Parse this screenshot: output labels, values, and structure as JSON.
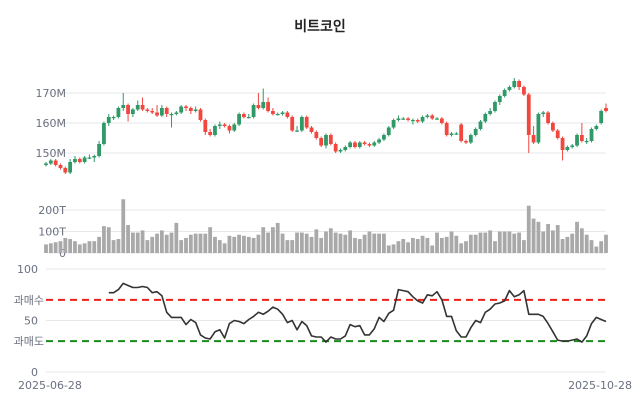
{
  "chart_data": [
    {
      "type": "candlestick",
      "title": "비트코인",
      "start_date": "2025-06-28",
      "end_date": "2025-10-28",
      "x_tick_labels": [
        "2025-06-28",
        "2025-10-28"
      ],
      "y_ticks": [
        150,
        160,
        170
      ],
      "y_tick_labels": [
        "150M",
        "160M",
        "170M"
      ],
      "unit": "M",
      "grid": true,
      "up_color": "#2f9a68",
      "down_color": "#f2473f",
      "ohlc": [
        [
          146,
          147,
          145.5,
          146.5
        ],
        [
          146.5,
          148,
          146,
          147.5
        ],
        [
          147.5,
          148,
          145.5,
          146
        ],
        [
          146,
          146.5,
          144.5,
          145
        ],
        [
          145,
          145.5,
          143,
          143.5
        ],
        [
          143.5,
          148,
          143,
          147
        ],
        [
          147,
          149,
          146.5,
          148
        ],
        [
          148,
          148.5,
          146.5,
          147
        ],
        [
          147,
          149,
          146.5,
          148.5
        ],
        [
          148.5,
          149.5,
          148,
          148.5
        ],
        [
          148.5,
          149.5,
          147,
          149
        ],
        [
          149,
          154,
          148.5,
          153
        ],
        [
          153,
          160.5,
          152.5,
          160
        ],
        [
          160,
          163,
          159,
          162
        ],
        [
          162,
          162.5,
          161,
          162
        ],
        [
          162,
          165.5,
          161.5,
          165
        ],
        [
          165,
          170,
          164,
          166
        ],
        [
          166,
          166.5,
          160.5,
          163
        ],
        [
          163,
          165,
          162,
          164.5
        ],
        [
          164.5,
          167.5,
          164,
          166
        ],
        [
          166,
          168.5,
          164,
          164.5
        ],
        [
          164.5,
          165,
          163.5,
          164
        ],
        [
          164,
          165,
          163,
          163.5
        ],
        [
          163.5,
          166,
          162,
          162.5
        ],
        [
          162.5,
          166,
          162,
          165
        ],
        [
          165,
          165.5,
          162,
          163
        ],
        [
          163,
          163.5,
          158.5,
          163
        ],
        [
          163,
          164,
          162.5,
          163.5
        ],
        [
          163.5,
          166,
          163,
          165.5
        ],
        [
          165.5,
          166,
          164,
          165
        ],
        [
          165,
          165.5,
          163,
          164
        ],
        [
          164,
          165.5,
          163.5,
          164.5
        ],
        [
          164.5,
          165,
          160.5,
          161
        ],
        [
          161,
          161.5,
          156,
          157
        ],
        [
          157,
          158,
          155.5,
          156
        ],
        [
          156,
          159.5,
          155.5,
          159
        ],
        [
          159,
          160.5,
          158,
          159.5
        ],
        [
          159.5,
          160,
          158.5,
          159
        ],
        [
          159,
          159.5,
          156.5,
          157.5
        ],
        [
          157.5,
          160,
          157,
          159.5
        ],
        [
          159.5,
          163.5,
          159,
          163
        ],
        [
          163,
          163.5,
          161.5,
          162
        ],
        [
          162,
          163,
          161.5,
          162
        ],
        [
          162,
          166.5,
          161.5,
          166
        ],
        [
          166,
          170,
          164.5,
          165
        ],
        [
          165,
          171.5,
          164.5,
          167
        ],
        [
          167,
          168.5,
          163.5,
          164
        ],
        [
          164,
          165,
          162.5,
          163
        ],
        [
          163,
          163.5,
          162.5,
          163
        ],
        [
          163,
          164,
          162.5,
          163.5
        ],
        [
          163.5,
          164,
          161.5,
          162
        ],
        [
          162,
          162.5,
          157,
          157.5
        ],
        [
          157.5,
          159,
          157,
          157.5
        ],
        [
          157.5,
          162.5,
          157,
          162
        ],
        [
          162,
          162.5,
          158,
          158.5
        ],
        [
          158.5,
          159,
          156.5,
          157
        ],
        [
          157,
          157.5,
          154.5,
          155
        ],
        [
          155,
          155.5,
          152,
          152.5
        ],
        [
          152.5,
          156.5,
          151.5,
          156
        ],
        [
          156,
          156.5,
          152.5,
          153
        ],
        [
          153,
          153.5,
          150,
          150.5
        ],
        [
          150.5,
          151.5,
          150,
          151
        ],
        [
          151,
          152.5,
          150.5,
          152
        ],
        [
          152,
          154,
          151.5,
          153.5
        ],
        [
          153.5,
          154,
          151.5,
          152
        ],
        [
          152,
          154,
          151.5,
          153.5
        ],
        [
          153.5,
          154,
          152.5,
          153
        ],
        [
          153,
          153.5,
          152,
          152.5
        ],
        [
          152.5,
          154,
          152,
          153.5
        ],
        [
          153.5,
          155,
          153,
          154.5
        ],
        [
          154.5,
          156.5,
          154,
          156
        ],
        [
          156,
          159,
          155.5,
          158.5
        ],
        [
          158.5,
          161.5,
          158,
          161
        ],
        [
          161,
          162.5,
          160.5,
          161.5
        ],
        [
          161.5,
          162,
          161,
          161.5
        ],
        [
          161.5,
          162,
          160.5,
          161
        ],
        [
          161,
          161.5,
          159.5,
          161
        ],
        [
          161,
          161.5,
          160,
          160.5
        ],
        [
          160.5,
          162.5,
          160,
          162
        ],
        [
          162,
          163,
          161.5,
          162.5
        ],
        [
          162.5,
          163,
          161,
          161.5
        ],
        [
          161.5,
          162,
          161,
          161.5
        ],
        [
          161.5,
          162,
          159.5,
          160
        ],
        [
          160,
          160.5,
          155.5,
          156
        ],
        [
          156,
          157,
          155.5,
          156.5
        ],
        [
          156.5,
          157,
          156,
          156.5
        ],
        [
          159.5,
          160,
          153.5,
          154
        ],
        [
          154,
          154.5,
          153,
          153.5
        ],
        [
          153.5,
          156.5,
          153,
          156
        ],
        [
          156,
          158.5,
          155.5,
          158
        ],
        [
          158,
          161,
          157.5,
          160.5
        ],
        [
          160.5,
          163.5,
          160,
          163
        ],
        [
          163,
          165,
          162.5,
          164
        ],
        [
          164,
          167.5,
          163.5,
          167
        ],
        [
          167,
          169.5,
          166,
          169
        ],
        [
          169,
          171.5,
          168.5,
          171
        ],
        [
          171,
          172.5,
          170.5,
          172
        ],
        [
          172,
          175,
          171.5,
          174
        ],
        [
          174,
          174.5,
          171,
          172
        ],
        [
          172,
          172.5,
          169,
          169.5
        ],
        [
          169.5,
          170,
          150,
          156
        ],
        [
          156,
          159,
          153,
          153.5
        ],
        [
          153.5,
          163.5,
          153,
          163
        ],
        [
          163,
          164,
          162,
          163.5
        ],
        [
          163.5,
          164,
          159.5,
          160
        ],
        [
          160,
          160.5,
          157,
          157.5
        ],
        [
          157.5,
          158,
          154.5,
          155
        ],
        [
          155,
          155.5,
          147.5,
          151
        ],
        [
          151,
          152.5,
          150.5,
          152
        ],
        [
          152,
          153,
          151.5,
          152.5
        ],
        [
          152.5,
          156.5,
          152,
          156
        ],
        [
          156,
          160,
          153.5,
          154
        ],
        [
          154,
          155,
          153,
          154
        ],
        [
          154,
          158.5,
          153.5,
          158
        ],
        [
          158,
          159.5,
          157.5,
          159
        ],
        [
          160,
          164.5,
          159.5,
          164
        ],
        [
          165,
          166.5,
          163.5,
          164
        ]
      ]
    },
    {
      "type": "bar",
      "y_ticks": [
        0,
        100,
        200
      ],
      "y_tick_labels": [
        "0",
        "100T",
        "200T"
      ],
      "unit": "T",
      "color": "#a9a9a9",
      "values": [
        40,
        45,
        50,
        55,
        70,
        65,
        55,
        40,
        45,
        55,
        55,
        75,
        125,
        120,
        60,
        65,
        250,
        130,
        95,
        95,
        105,
        60,
        75,
        90,
        105,
        85,
        95,
        140,
        60,
        70,
        85,
        90,
        90,
        90,
        120,
        75,
        60,
        45,
        80,
        75,
        85,
        80,
        75,
        70,
        85,
        120,
        95,
        120,
        140,
        90,
        60,
        60,
        95,
        95,
        90,
        75,
        110,
        70,
        100,
        115,
        95,
        90,
        85,
        105,
        70,
        65,
        85,
        100,
        90,
        90,
        90,
        35,
        40,
        55,
        65,
        50,
        70,
        65,
        80,
        70,
        35,
        95,
        70,
        75,
        100,
        80,
        45,
        55,
        85,
        85,
        95,
        95,
        105,
        55,
        100,
        100,
        100,
        90,
        95,
        60,
        220,
        160,
        145,
        100,
        135,
        105,
        130,
        65,
        75,
        90,
        145,
        115,
        85,
        60,
        30,
        55,
        85
      ]
    },
    {
      "type": "line",
      "y_ticks": [
        0,
        50,
        100
      ],
      "y_tick_labels": [
        "0",
        "50",
        "100"
      ],
      "ylim": [
        0,
        100
      ],
      "line_color": "#333333",
      "overbought": {
        "value": 70,
        "label": "과매수",
        "color": "#e8221b"
      },
      "oversold": {
        "value": 30,
        "label": "과매도",
        "color": "#1a8a1a"
      },
      "values": [
        null,
        null,
        null,
        null,
        null,
        null,
        null,
        null,
        null,
        null,
        null,
        null,
        null,
        77,
        77,
        80,
        86,
        84,
        82,
        82,
        83,
        82,
        77,
        78,
        74,
        58,
        53,
        53,
        53,
        46,
        51,
        48,
        36,
        33,
        32,
        39,
        41,
        33,
        47,
        50,
        49,
        47,
        51,
        54,
        58,
        56,
        59,
        63,
        61,
        56,
        48,
        50,
        41,
        49,
        45,
        35,
        34,
        34,
        29,
        34,
        32,
        32,
        35,
        46,
        44,
        45,
        36,
        36,
        42,
        53,
        49,
        57,
        60,
        80,
        79,
        78,
        73,
        69,
        67,
        75,
        74,
        78,
        70,
        54,
        54,
        40,
        34,
        34,
        43,
        50,
        48,
        58,
        61,
        66,
        67,
        69,
        79,
        73,
        75,
        79,
        56,
        56,
        56,
        54,
        47,
        39,
        31,
        30,
        30,
        31,
        32,
        29,
        35,
        47,
        53,
        51,
        49
      ]
    }
  ]
}
